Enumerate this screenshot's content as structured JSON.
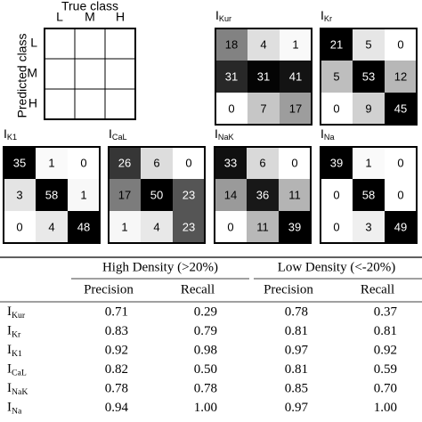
{
  "legend": {
    "title": "True class",
    "y_label": "Predicted class",
    "classes": [
      "L",
      "M",
      "H"
    ]
  },
  "matrices": [
    {
      "label": {
        "base": "I",
        "sub": "Kur"
      },
      "cells": [
        [
          18,
          4,
          1
        ],
        [
          31,
          31,
          41
        ],
        [
          0,
          7,
          17
        ]
      ]
    },
    {
      "label": {
        "base": "I",
        "sub": "Kr"
      },
      "cells": [
        [
          21,
          5,
          0
        ],
        [
          5,
          53,
          12
        ],
        [
          0,
          9,
          45
        ]
      ]
    },
    {
      "label": {
        "base": "I",
        "sub": "K1"
      },
      "cells": [
        [
          35,
          1,
          0
        ],
        [
          3,
          58,
          1
        ],
        [
          0,
          4,
          48
        ]
      ]
    },
    {
      "label": {
        "base": "I",
        "sub": "CaL"
      },
      "cells": [
        [
          26,
          6,
          0
        ],
        [
          17,
          50,
          23
        ],
        [
          1,
          4,
          23
        ]
      ]
    },
    {
      "label": {
        "base": "I",
        "sub": "NaK"
      },
      "cells": [
        [
          33,
          6,
          0
        ],
        [
          14,
          36,
          11
        ],
        [
          0,
          11,
          39
        ]
      ]
    },
    {
      "label": {
        "base": "I",
        "sub": "Na"
      },
      "cells": [
        [
          39,
          1,
          0
        ],
        [
          0,
          58,
          0
        ],
        [
          0,
          3,
          49
        ]
      ]
    }
  ],
  "table": {
    "groups": [
      "High Density (>20%)",
      "Low Density (<-20%)"
    ],
    "columns": [
      "Precision",
      "Recall",
      "Precision",
      "Recall"
    ],
    "rows": [
      {
        "label": {
          "base": "I",
          "sub": "Kur"
        },
        "values": [
          "0.71",
          "0.29",
          "0.78",
          "0.37"
        ]
      },
      {
        "label": {
          "base": "I",
          "sub": "Kr"
        },
        "values": [
          "0.83",
          "0.79",
          "0.81",
          "0.81"
        ]
      },
      {
        "label": {
          "base": "I",
          "sub": "K1"
        },
        "values": [
          "0.92",
          "0.98",
          "0.97",
          "0.92"
        ]
      },
      {
        "label": {
          "base": "I",
          "sub": "CaL"
        },
        "values": [
          "0.82",
          "0.50",
          "0.81",
          "0.59"
        ]
      },
      {
        "label": {
          "base": "I",
          "sub": "NaK"
        },
        "values": [
          "0.78",
          "0.78",
          "0.85",
          "0.70"
        ]
      },
      {
        "label": {
          "base": "I",
          "sub": "Na"
        },
        "values": [
          "0.94",
          "1.00",
          "0.97",
          "1.00"
        ]
      }
    ]
  }
}
